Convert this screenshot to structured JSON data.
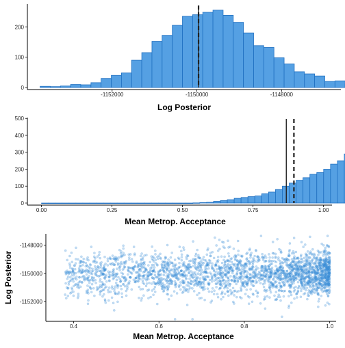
{
  "colors": {
    "bar_fill": "#55a0e3",
    "bar_stroke": "#1f6fc0",
    "point": "#3a8fd8",
    "axis": "#000000",
    "ref_line": "#222222"
  },
  "chart_data": [
    {
      "id": "hist-log-posterior",
      "type": "bar",
      "xlabel": "Log Posterior",
      "ylabel": "",
      "xlim": [
        -1154000,
        -1146600
      ],
      "ylim": [
        0,
        275
      ],
      "xticks": [
        -1152000,
        -1150000,
        -1148000
      ],
      "xtick_labels": [
        "-1152000",
        "-1150000",
        "-1148000"
      ],
      "yticks": [
        0,
        100,
        200
      ],
      "ytick_labels": [
        "0",
        "100",
        "200"
      ],
      "bin_start": -1153700,
      "bin_width": 240,
      "counts": [
        4,
        3,
        5,
        10,
        9,
        16,
        30,
        40,
        48,
        90,
        115,
        152,
        172,
        205,
        235,
        240,
        248,
        255,
        238,
        215,
        180,
        138,
        132,
        98,
        78,
        52,
        45,
        38,
        20,
        22,
        12,
        6
      ],
      "vline_solid": -1149960,
      "vline_dashed": -1149960,
      "grid": false
    },
    {
      "id": "hist-metrop-acceptance",
      "type": "bar",
      "xlabel": "Mean Metrop. Acceptance",
      "ylabel": "",
      "xlim": [
        -0.05,
        1.03
      ],
      "ylim": [
        0,
        505
      ],
      "xticks": [
        0,
        0.25,
        0.5,
        0.75,
        1
      ],
      "xtick_labels": [
        "0.00",
        "0.25",
        "0.50",
        "0.75",
        "1.00"
      ],
      "yticks": [
        0,
        100,
        200,
        300,
        400,
        500
      ],
      "ytick_labels": [
        "0",
        "100",
        "200",
        "300",
        "400",
        "500"
      ],
      "bin_start": 0,
      "bin_width": 0.0244,
      "counts": [
        0,
        0,
        0,
        0,
        0,
        0,
        0,
        0,
        0,
        0,
        0,
        0,
        0,
        0,
        0,
        0,
        0,
        0,
        0,
        0,
        0,
        0,
        1,
        3,
        5,
        10,
        15,
        20,
        28,
        33,
        38,
        42,
        55,
        65,
        80,
        100,
        118,
        135,
        150,
        170,
        180,
        200,
        230,
        250,
        290
      ],
      "vline_solid": 0.868,
      "vline_dashed": 0.895,
      "grid": false
    },
    {
      "id": "scatter-accept-vs-logpost",
      "type": "scatter",
      "xlabel": "Mean Metrop. Acceptance",
      "ylabel": "Log Posterior",
      "xlim": [
        0.335,
        1.015
      ],
      "ylim": [
        -1153400,
        -1147200
      ],
      "xticks": [
        0.4,
        0.6,
        0.8,
        1
      ],
      "xtick_labels": [
        "0.4",
        "0.6",
        "0.8",
        "1.0"
      ],
      "yticks": [
        -1152000,
        -1150000,
        -1148000
      ],
      "ytick_labels": [
        "-1152000",
        "-1150000",
        "-1148000"
      ],
      "point_count": 2600,
      "grid": false
    }
  ]
}
